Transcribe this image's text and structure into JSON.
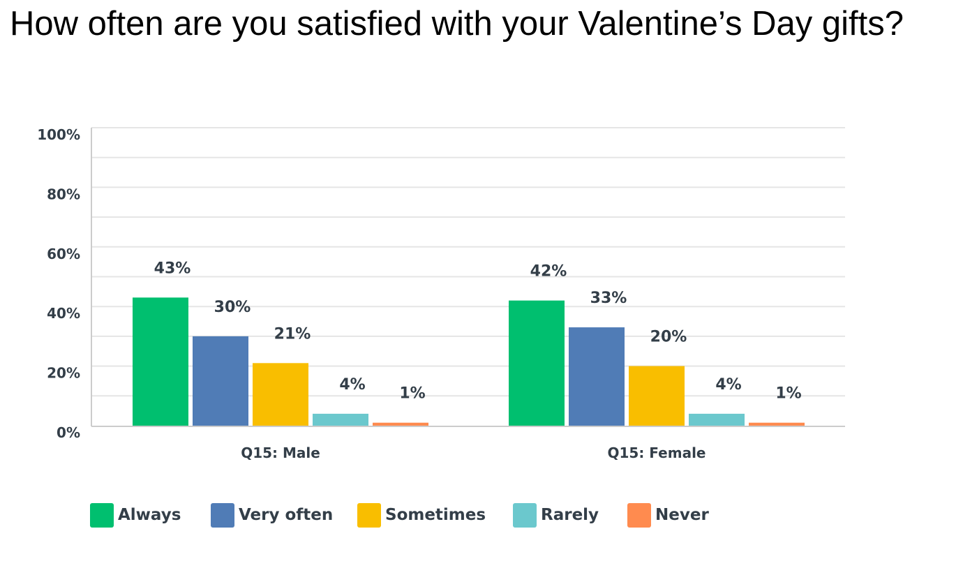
{
  "title": "How often are you satisfied with your Valentine’s Day gifts?",
  "chart_data": {
    "type": "bar",
    "categories": [
      "Q15: Male",
      "Q15: Female"
    ],
    "series": [
      {
        "name": "Always",
        "values": [
          43,
          42
        ],
        "labels": [
          "43%",
          "42%"
        ],
        "color": "#00bf6f"
      },
      {
        "name": "Very often",
        "values": [
          30,
          33
        ],
        "labels": [
          "30%",
          "33%"
        ],
        "color": "#507cb6"
      },
      {
        "name": "Sometimes",
        "values": [
          21,
          20
        ],
        "labels": [
          "21%",
          "20%"
        ],
        "color": "#f9be00"
      },
      {
        "name": "Rarely",
        "values": [
          4,
          4
        ],
        "labels": [
          "4%",
          "4%"
        ],
        "color": "#6bc8cd"
      },
      {
        "name": "Never",
        "values": [
          1,
          1
        ],
        "labels": [
          "1%",
          "1%"
        ],
        "color": "#ff8b4f"
      }
    ],
    "y_ticks": [
      "0%",
      "20%",
      "40%",
      "60%",
      "80%",
      "100%"
    ],
    "ylim": [
      0,
      100
    ],
    "grid": true,
    "legend_position": "bottom-left"
  }
}
